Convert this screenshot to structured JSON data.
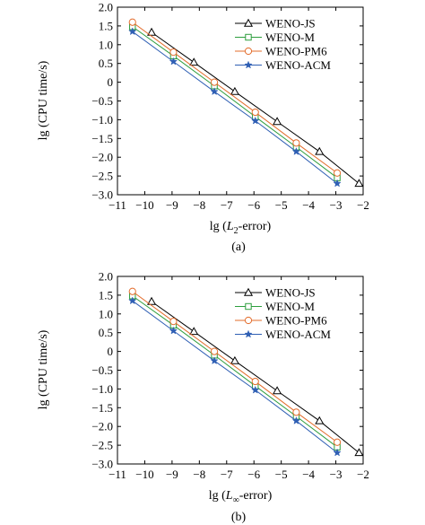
{
  "colors": {
    "WENO-JS": "#000000",
    "WENO-M": "#2e9e3e",
    "WENO-PM6": "#e36c2b",
    "WENO-ACM": "#2f5fb4"
  },
  "markers": {
    "WENO-JS": "triangle",
    "WENO-M": "square",
    "WENO-PM6": "circle",
    "WENO-ACM": "star"
  },
  "chart_data": [
    {
      "type": "line",
      "panel_label": "(a)",
      "ylabel": "lg (CPU time/s)",
      "xlabel": {
        "prefix": "lg (",
        "var": "L",
        "sub": "2",
        "suffix": "-error)"
      },
      "xlim": [
        -11,
        -2
      ],
      "ylim": [
        -3.0,
        2.0
      ],
      "xticks": [
        -11,
        -10,
        -9,
        -8,
        -7,
        -6,
        -5,
        -4,
        -3,
        -2
      ],
      "yticks": [
        2.0,
        1.5,
        1.0,
        0.5,
        0,
        -0.5,
        -1.0,
        -1.5,
        -2.0,
        -2.5,
        -3.0
      ],
      "xtick_labels": [
        "−11",
        "−10",
        "−9",
        "−8",
        "−7",
        "−6",
        "−5",
        "−4",
        "−3",
        "−2"
      ],
      "ytick_labels": [
        "2.0",
        "1.5",
        "1.0",
        "0.5",
        "0",
        "−0.5",
        "−1.0",
        "−1.5",
        "−2.0",
        "−2.5",
        "−3.0"
      ],
      "legend_position": "top-right",
      "series": [
        {
          "name": "WENO-JS",
          "x": [
            -9.75,
            -8.2,
            -6.7,
            -5.15,
            -3.6,
            -2.15
          ],
          "y": [
            1.33,
            0.53,
            -0.25,
            -1.05,
            -1.85,
            -2.7
          ]
        },
        {
          "name": "WENO-M",
          "x": [
            -10.45,
            -8.95,
            -7.45,
            -5.95,
            -4.45,
            -2.95
          ],
          "y": [
            1.48,
            0.7,
            -0.1,
            -0.92,
            -1.73,
            -2.55
          ]
        },
        {
          "name": "WENO-PM6",
          "x": [
            -10.45,
            -8.95,
            -7.45,
            -5.95,
            -4.45,
            -2.95
          ],
          "y": [
            1.6,
            0.8,
            0.0,
            -0.8,
            -1.62,
            -2.42
          ]
        },
        {
          "name": "WENO-ACM",
          "x": [
            -10.45,
            -8.95,
            -7.45,
            -5.95,
            -4.45,
            -2.95
          ],
          "y": [
            1.35,
            0.55,
            -0.25,
            -1.03,
            -1.85,
            -2.7
          ]
        }
      ]
    },
    {
      "type": "line",
      "panel_label": "(b)",
      "ylabel": "lg (CPU time/s)",
      "xlabel": {
        "prefix": "lg (",
        "var": "L",
        "sub": "∞",
        "suffix": "-error)"
      },
      "xlim": [
        -11,
        -2
      ],
      "ylim": [
        -3.0,
        2.0
      ],
      "xticks": [
        -11,
        -10,
        -9,
        -8,
        -7,
        -6,
        -5,
        -4,
        -3,
        -2
      ],
      "yticks": [
        2.0,
        1.5,
        1.0,
        0.5,
        0,
        -0.5,
        -1.0,
        -1.5,
        -2.0,
        -2.5,
        -3.0
      ],
      "xtick_labels": [
        "−11",
        "−10",
        "−9",
        "−8",
        "−7",
        "−6",
        "−5",
        "−4",
        "−3",
        "−2"
      ],
      "ytick_labels": [
        "2.0",
        "1.5",
        "1.0",
        "0.5",
        "0",
        "−0.5",
        "−1.0",
        "−1.5",
        "−2.0",
        "−2.5",
        "−3.0"
      ],
      "legend_position": "top-right",
      "series": [
        {
          "name": "WENO-JS",
          "x": [
            -9.75,
            -8.2,
            -6.7,
            -5.15,
            -3.6,
            -2.15
          ],
          "y": [
            1.33,
            0.53,
            -0.25,
            -1.05,
            -1.85,
            -2.7
          ]
        },
        {
          "name": "WENO-M",
          "x": [
            -10.45,
            -8.95,
            -7.45,
            -5.95,
            -4.45,
            -2.95
          ],
          "y": [
            1.48,
            0.7,
            -0.1,
            -0.92,
            -1.73,
            -2.55
          ]
        },
        {
          "name": "WENO-PM6",
          "x": [
            -10.45,
            -8.95,
            -7.45,
            -5.95,
            -4.45,
            -2.95
          ],
          "y": [
            1.6,
            0.8,
            0.0,
            -0.8,
            -1.62,
            -2.42
          ]
        },
        {
          "name": "WENO-ACM",
          "x": [
            -10.45,
            -8.95,
            -7.45,
            -5.95,
            -4.45,
            -2.95
          ],
          "y": [
            1.35,
            0.55,
            -0.25,
            -1.03,
            -1.85,
            -2.7
          ]
        }
      ]
    }
  ]
}
